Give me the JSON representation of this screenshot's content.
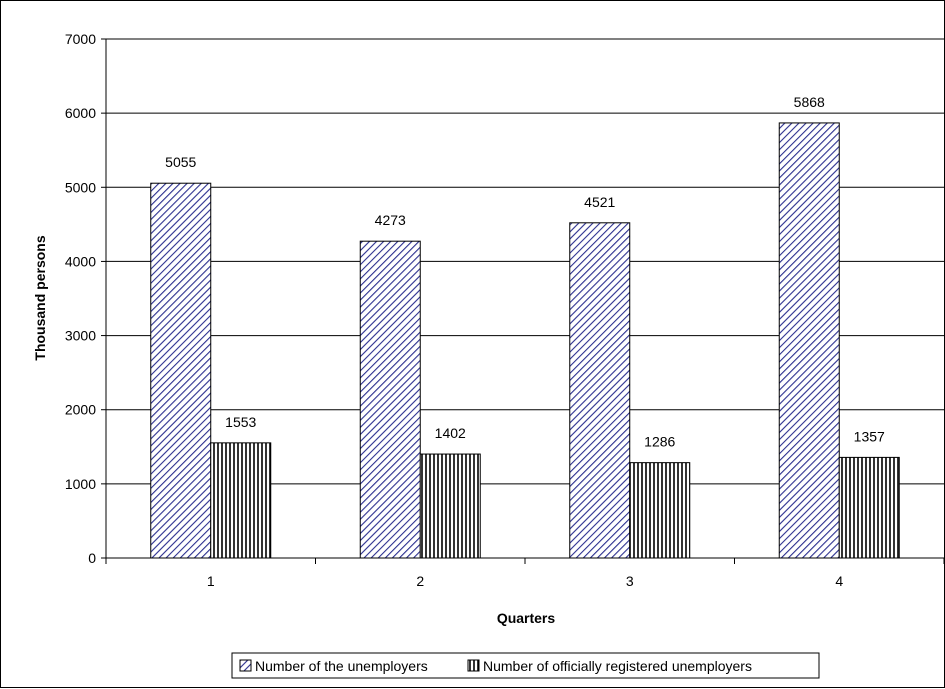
{
  "chart_data": {
    "type": "bar",
    "title": "",
    "xlabel": "Quarters",
    "ylabel": "Thousand persons",
    "categories": [
      "1",
      "2",
      "3",
      "4"
    ],
    "series": [
      {
        "name": "Number of the unemployers",
        "values": [
          5055,
          4273,
          4521,
          5868
        ],
        "color": "#2b2f8f",
        "pattern": "diagonal-hatch"
      },
      {
        "name": "Number of officially registered unemployers",
        "values": [
          1553,
          1402,
          1286,
          1357
        ],
        "color": "#000000",
        "pattern": "vertical-hatch"
      }
    ],
    "ylim": [
      0,
      7000
    ],
    "yticks": [
      0,
      1000,
      2000,
      3000,
      4000,
      5000,
      6000,
      7000
    ],
    "grid": true,
    "legend": "bottom"
  }
}
